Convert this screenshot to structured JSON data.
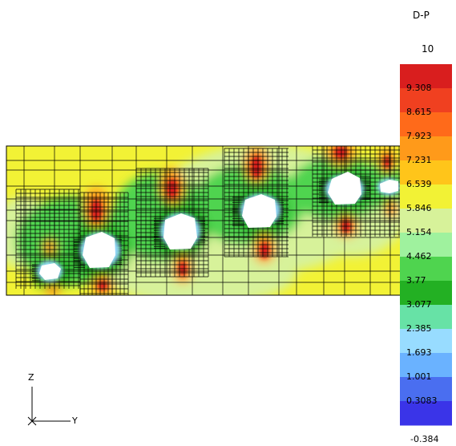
{
  "legend": {
    "title": "D-P",
    "max_label": "10",
    "min_label": "-0.384",
    "colors": [
      "#d91e1e",
      "#f04020",
      "#ff6a1a",
      "#ff9a1a",
      "#ffc51a",
      "#f2f235",
      "#d7f29a",
      "#9ff29e",
      "#4fd44f",
      "#23b023",
      "#67e2a6",
      "#98dcff",
      "#6ab2ff",
      "#4a6ef0",
      "#3a34e8"
    ],
    "ticks": [
      "9.308",
      "8.615",
      "7.923",
      "7.231",
      "6.539",
      "5.846",
      "5.154",
      "4.462",
      "3.77",
      "3.077",
      "2.385",
      "1.693",
      "1.001",
      "0.3083"
    ]
  },
  "axes": {
    "vertical": "Z",
    "horizontal": "Y"
  }
}
